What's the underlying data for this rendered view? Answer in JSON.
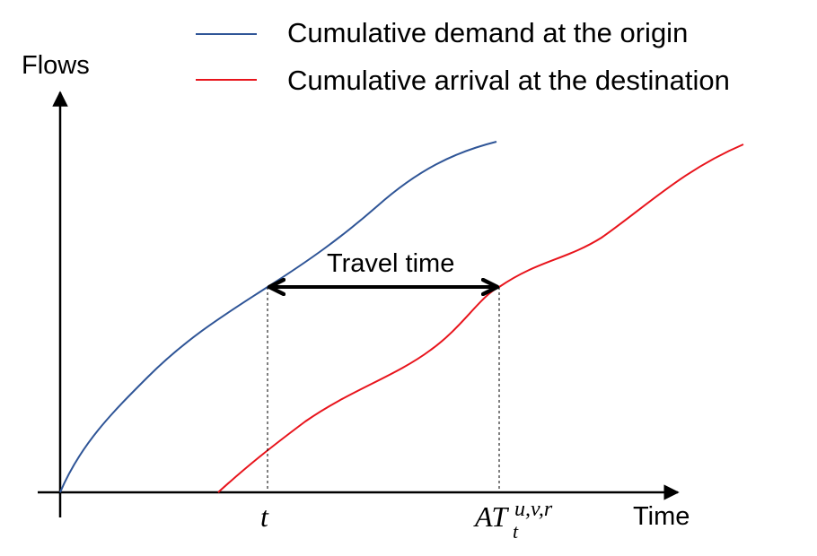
{
  "legend": {
    "items": [
      {
        "label": "Cumulative demand at the origin",
        "color": "#2f5597"
      },
      {
        "label": "Cumulative arrival at the destination",
        "color": "#e8141c"
      }
    ]
  },
  "axes": {
    "y_label": "Flows",
    "x_label": "Time"
  },
  "annotation": {
    "travel_time": "Travel time"
  },
  "ticks": {
    "t_label": "t",
    "at_main": "AT",
    "at_sub": "t",
    "at_sup": "u,v,r"
  },
  "colors": {
    "axis": "#000000",
    "demand_curve": "#2f5597",
    "arrival_curve": "#e8141c"
  }
}
